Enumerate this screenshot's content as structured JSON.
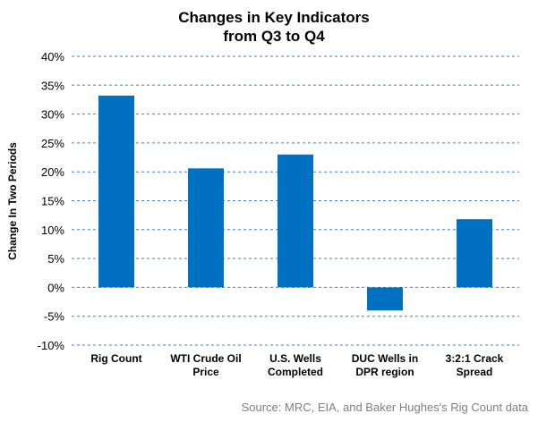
{
  "chart_data": {
    "type": "bar",
    "title": [
      "Changes in Key Indicators",
      "from Q3 to Q4"
    ],
    "ylabel": "Change In Two Periods",
    "xlabel": "",
    "categories": [
      [
        "Rig Count"
      ],
      [
        "WTI Crude Oil",
        "Price"
      ],
      [
        "U.S. Wells",
        "Completed"
      ],
      [
        "DUC Wells in",
        "DPR region"
      ],
      [
        "3:2:1 Crack",
        "Spread"
      ]
    ],
    "values": [
      33.2,
      20.6,
      23.0,
      -4.0,
      11.8
    ],
    "ylim": [
      -10,
      40
    ],
    "yticks": [
      -10,
      -5,
      0,
      5,
      10,
      15,
      20,
      25,
      30,
      35,
      40
    ],
    "tick_suffix": "%",
    "grid": true,
    "legend": "none",
    "bar_color": "#0070C0",
    "grid_color": "#4a7fb5",
    "source": "Source: MRC, EIA, and Baker Hughes's Rig Count data"
  }
}
